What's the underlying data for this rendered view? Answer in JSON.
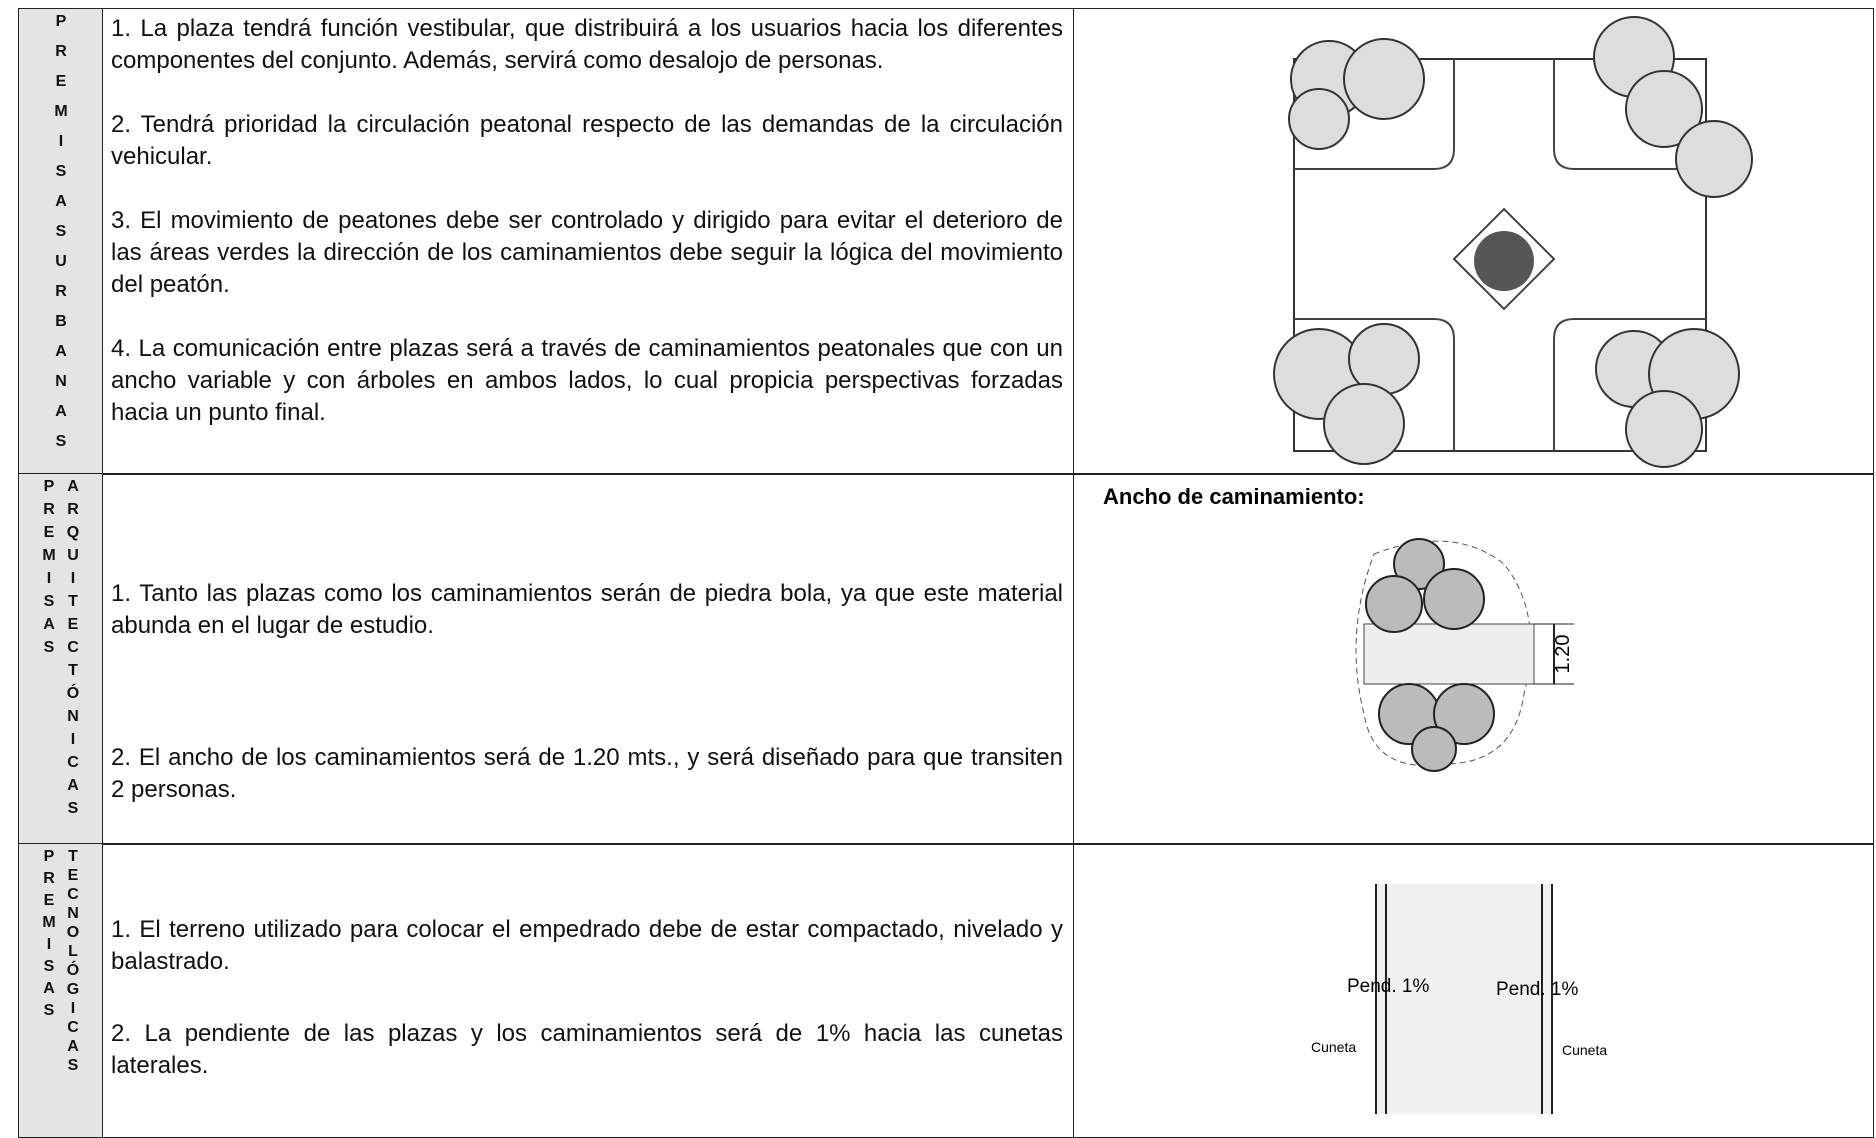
{
  "rows": [
    {
      "label": [
        "PREMISAS",
        "URBANAS"
      ],
      "items": [
        "1.  La plaza tendrá función vestibular, que distribuirá a los usuarios hacia los diferentes componentes del conjunto.  Además, servirá como desalojo de personas.",
        "2.  Tendrá prioridad la circulación peatonal respecto de las demandas de la circulación vehicular.",
        "3.  El movimiento de peatones debe ser controlado y dirigido para evitar el deterioro de las áreas verdes la dirección de los caminamientos debe seguir la lógica del movimiento del peatón.",
        "4.   La comunicación entre plazas será a través de caminamientos peatonales que con un ancho variable y con árboles en ambos lados, lo cual propicia perspectivas forzadas hacia un punto final."
      ]
    },
    {
      "label": [
        "PREMISAS",
        "ARQUITECTÓNICAS"
      ],
      "items": [
        "1.  Tanto las plazas como los caminamientos serán de piedra bola, ya que este material abunda en el lugar de estudio.",
        "2.   El ancho de los caminamientos será de 1.20 mts., y será diseñado para que transiten 2 personas."
      ],
      "figure": {
        "title": "Ancho de caminamiento:",
        "dimension": "1.20"
      }
    },
    {
      "label": [
        "PREMISAS",
        "TECNOLÓGICAS"
      ],
      "items": [
        "1.   El terreno utilizado para colocar el empedrado debe de estar compactado, nivelado y balastrado.",
        "2.  La pendiente de las plazas y los caminamientos será de 1% hacia las cunetas laterales."
      ],
      "figure": {
        "labels": [
          "Pend. 1%",
          "Pend. 1%",
          "Cuneta",
          "Cuneta"
        ]
      }
    }
  ]
}
